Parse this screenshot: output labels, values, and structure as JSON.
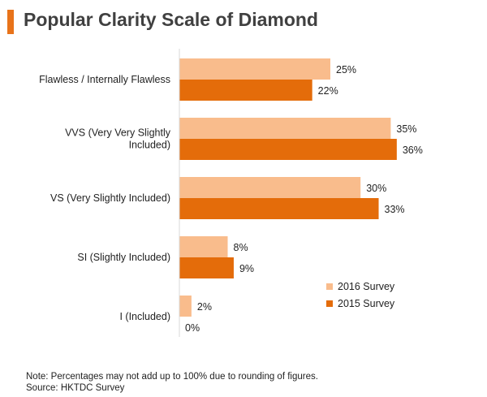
{
  "title": "Popular Clarity Scale of Diamond",
  "colors": {
    "accent": "#E8731A",
    "series_2016": "#F9BC8C",
    "series_2015": "#E46C0A",
    "axis": "#D9D9D9"
  },
  "chart_data": {
    "type": "bar",
    "orientation": "horizontal",
    "categories": [
      [
        "Flawless / Internally Flawless"
      ],
      [
        "VVS (Very Very Slightly",
        "Included)"
      ],
      [
        "VS (Very Slightly Included)"
      ],
      [
        "SI (Slightly Included)"
      ],
      [
        "I (Included)"
      ]
    ],
    "series": [
      {
        "name": "2016 Survey",
        "values": [
          25,
          35,
          30,
          8,
          2
        ]
      },
      {
        "name": "2015 Survey",
        "values": [
          22,
          36,
          33,
          9,
          0
        ]
      }
    ],
    "value_suffix": "%",
    "xlim": [
      0,
      40
    ],
    "legend_position": "bottom-right",
    "grid": false
  },
  "notes": [
    "Note: Percentages may not add up to 100% due to rounding of figures.",
    "Source: HKTDC Survey"
  ]
}
